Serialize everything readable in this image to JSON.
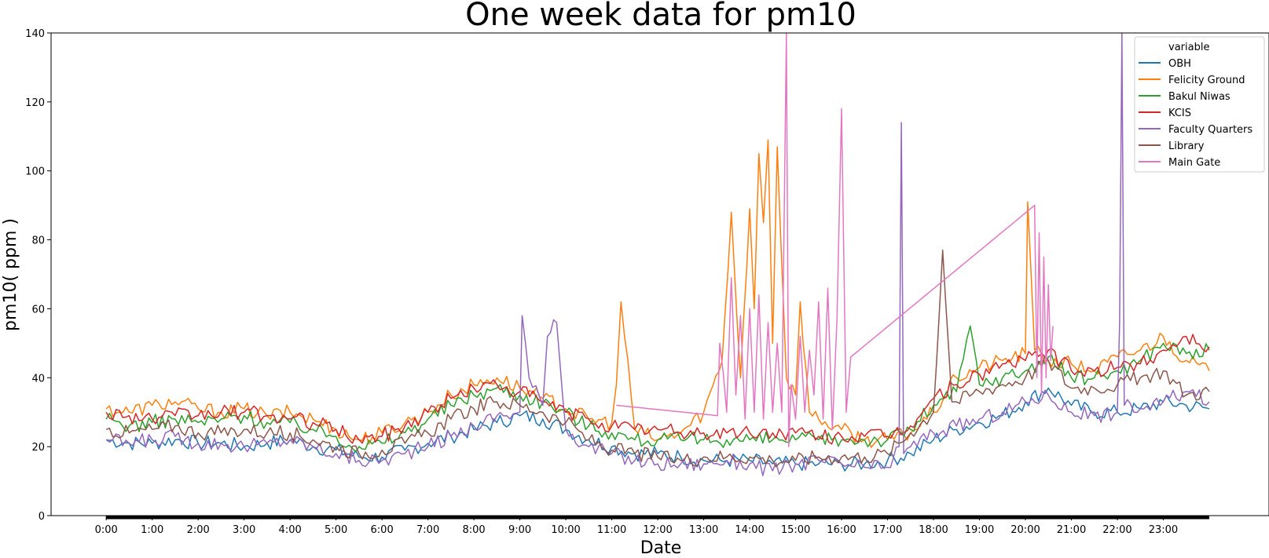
{
  "chart_data": {
    "type": "line",
    "title": "One week data for pm10",
    "xlabel": "Date",
    "ylabel": "pm10( ppm )",
    "ylim": [
      0,
      140
    ],
    "yticks": [
      0,
      20,
      40,
      60,
      80,
      100,
      120,
      140
    ],
    "xlim": [
      -1.2,
      25.3
    ],
    "xticks": [
      "0:00",
      "1:00",
      "2:00",
      "3:00",
      "4:00",
      "5:00",
      "6:00",
      "7:00",
      "8:00",
      "9:00",
      "10:00",
      "11:00",
      "12:00",
      "13:00",
      "14:00",
      "15:00",
      "16:00",
      "17:00",
      "18:00",
      "19:00",
      "20:00",
      "21:00",
      "22:00",
      "23:00"
    ],
    "grid": false,
    "legend": {
      "title": "variable",
      "position": "top-right"
    },
    "series": [
      {
        "name": "OBH",
        "color": "#1f77b4",
        "x": [
          0,
          0.5,
          1,
          1.5,
          2,
          2.5,
          3,
          3.5,
          4,
          4.5,
          5,
          5.5,
          6,
          6.5,
          7,
          7.5,
          8,
          8.5,
          9,
          9.5,
          10,
          10.5,
          11,
          11.5,
          12,
          12.5,
          13,
          13.5,
          14,
          14.5,
          15,
          15.5,
          16,
          16.5,
          17,
          17.5,
          18,
          18.5,
          19,
          19.5,
          20,
          20.5,
          21,
          21.5,
          22,
          22.5,
          23,
          23.5,
          24
        ],
        "y": [
          22,
          21,
          21,
          22,
          21,
          21,
          20,
          21,
          22,
          20,
          19,
          17,
          17,
          19,
          21,
          23,
          25,
          27,
          29,
          28,
          25,
          22,
          20,
          18,
          18,
          17,
          16,
          16,
          16,
          15,
          15,
          15,
          15,
          15,
          16,
          18,
          22,
          25,
          27,
          29,
          33,
          37,
          32,
          30,
          30,
          31,
          33,
          32,
          31
        ]
      },
      {
        "name": "Felicity Ground",
        "color": "#ff7f0e",
        "x": [
          0,
          0.5,
          1,
          1.5,
          2,
          2.5,
          3,
          3.5,
          4,
          4.5,
          5,
          5.5,
          6,
          6.5,
          7,
          7.5,
          8,
          8.5,
          9,
          9.5,
          10,
          10.5,
          11,
          11.1,
          11.2,
          11.5,
          12,
          12.5,
          13,
          13.4,
          13.6,
          13.8,
          14,
          14.1,
          14.2,
          14.3,
          14.4,
          14.5,
          14.6,
          14.8,
          15,
          15.1,
          15.3,
          15.5,
          16,
          16.5,
          17,
          17.5,
          18,
          18.5,
          19,
          19.5,
          20,
          20.05,
          20.2,
          20.5,
          21,
          21.5,
          22,
          22.5,
          23,
          23.5,
          24
        ],
        "y": [
          31,
          30,
          32,
          33,
          31,
          30,
          31,
          29,
          30,
          28,
          25,
          22,
          24,
          27,
          30,
          35,
          38,
          40,
          37,
          34,
          31,
          28,
          27,
          38,
          62,
          25,
          22,
          24,
          30,
          45,
          88,
          40,
          89,
          60,
          105,
          85,
          109,
          50,
          107,
          40,
          35,
          62,
          30,
          28,
          25,
          22,
          22,
          24,
          30,
          40,
          43,
          45,
          47,
          91,
          48,
          45,
          44,
          42,
          46,
          48,
          52,
          45,
          42
        ]
      },
      {
        "name": "Bakul Niwas",
        "color": "#2ca02c",
        "x": [
          0,
          0.5,
          1,
          1.5,
          2,
          2.5,
          3,
          3.5,
          4,
          4.5,
          5,
          5.5,
          6,
          6.5,
          7,
          7.5,
          8,
          8.5,
          9,
          9.5,
          10,
          10.5,
          11,
          11.5,
          12,
          12.5,
          13,
          13.5,
          14,
          14.5,
          15,
          15.5,
          16,
          16.5,
          17,
          17.5,
          18,
          18.5,
          18.8,
          19,
          19.5,
          20,
          20.5,
          21,
          21.5,
          22,
          22.5,
          23,
          23.5,
          24
        ],
        "y": [
          28,
          26,
          27,
          28,
          27,
          28,
          29,
          27,
          27,
          25,
          23,
          20,
          21,
          24,
          28,
          32,
          35,
          37,
          35,
          33,
          30,
          26,
          24,
          22,
          22,
          22,
          22,
          22,
          22,
          22,
          22,
          22,
          22,
          22,
          22,
          25,
          32,
          36,
          55,
          38,
          40,
          42,
          46,
          40,
          40,
          42,
          45,
          50,
          47,
          48
        ]
      },
      {
        "name": "KCIS",
        "color": "#d62728",
        "x": [
          0,
          0.5,
          1,
          1.5,
          2,
          2.5,
          3,
          3.5,
          4,
          4.5,
          5,
          5.5,
          6,
          6.5,
          7,
          7.5,
          8,
          8.5,
          9,
          9.5,
          10,
          10.5,
          11,
          11.5,
          12,
          12.5,
          13,
          13.5,
          14,
          14.5,
          15,
          15.5,
          16,
          16.5,
          17,
          17.5,
          18,
          18.5,
          19,
          19.5,
          20,
          20.5,
          21,
          21.5,
          22,
          22.5,
          23,
          23.5,
          24
        ],
        "y": [
          30,
          29,
          28,
          29,
          29,
          30,
          30,
          29,
          28,
          27,
          25,
          22,
          23,
          26,
          30,
          34,
          37,
          38,
          36,
          33,
          30,
          28,
          26,
          25,
          25,
          24,
          24,
          24,
          24,
          24,
          24,
          23,
          23,
          23,
          23,
          26,
          34,
          38,
          41,
          44,
          45,
          48,
          42,
          42,
          43,
          44,
          48,
          52,
          49
        ]
      },
      {
        "name": "Faculty Quarters",
        "color": "#9467bd",
        "x": [
          0,
          0.5,
          1,
          1.5,
          2,
          2.5,
          3,
          3.5,
          4,
          4.5,
          5,
          5.5,
          6,
          6.5,
          7,
          7.5,
          8,
          8.5,
          9,
          9.05,
          9.2,
          9.5,
          9.6,
          9.8,
          10,
          10.5,
          11,
          11.5,
          12,
          12.5,
          13,
          13.5,
          14,
          14.5,
          15,
          15.5,
          16,
          16.5,
          17,
          17.25,
          17.3,
          17.35,
          17.5,
          18,
          18.5,
          19,
          19.5,
          20,
          20.5,
          21,
          21.5,
          22,
          22.05,
          22.1,
          22.15,
          22.5,
          23,
          23.5,
          24
        ],
        "y": [
          22,
          21,
          22,
          23,
          21,
          21,
          20,
          21,
          22,
          20,
          18,
          16,
          16,
          18,
          20,
          23,
          26,
          29,
          30,
          58,
          40,
          32,
          52,
          56,
          25,
          20,
          18,
          16,
          15,
          15,
          15,
          16,
          15,
          13,
          15,
          16,
          15,
          14,
          14,
          20,
          114,
          18,
          20,
          24,
          26,
          28,
          30,
          33,
          35,
          30,
          29,
          30,
          56,
          140,
          32,
          31,
          33,
          36,
          33
        ]
      },
      {
        "name": "Library",
        "color": "#8c564b",
        "x": [
          0,
          0.5,
          1,
          1.5,
          2,
          2.5,
          3,
          3.5,
          4,
          4.5,
          5,
          5.5,
          6,
          6.5,
          7,
          7.5,
          8,
          8.5,
          9,
          9.5,
          10,
          10.5,
          11,
          11.5,
          12,
          12.5,
          13,
          13.5,
          14,
          14.5,
          15,
          15.5,
          16,
          16.5,
          17,
          17.5,
          18,
          18.2,
          18.4,
          18.5,
          19,
          19.5,
          20,
          20.5,
          21,
          21.5,
          22,
          22.5,
          23,
          23.5,
          24
        ],
        "y": [
          25,
          24,
          25,
          26,
          24,
          24,
          25,
          24,
          24,
          22,
          20,
          18,
          19,
          21,
          24,
          28,
          31,
          33,
          32,
          30,
          27,
          22,
          19,
          18,
          17,
          16,
          17,
          17,
          17,
          16,
          16,
          17,
          17,
          17,
          18,
          24,
          30,
          77,
          33,
          33,
          36,
          38,
          40,
          45,
          37,
          37,
          38,
          40,
          42,
          35,
          36
        ]
      },
      {
        "name": "Main Gate",
        "color": "#e377c2",
        "x": [
          11.1,
          13.3,
          13.35,
          13.5,
          13.6,
          13.7,
          13.8,
          13.9,
          14,
          14.1,
          14.2,
          14.3,
          14.4,
          14.5,
          14.6,
          14.7,
          14.8,
          14.85,
          14.9,
          15,
          15.1,
          15.2,
          15.3,
          15.4,
          15.5,
          15.6,
          15.7,
          15.8,
          15.9,
          16,
          16.1,
          16.2,
          20.2,
          20.25,
          20.3,
          20.35,
          20.4,
          20.45,
          20.5,
          20.55,
          20.6
        ],
        "y": [
          32,
          29,
          50,
          30,
          69,
          35,
          58,
          28,
          60,
          30,
          64,
          28,
          56,
          30,
          50,
          30,
          140,
          20,
          38,
          28,
          52,
          30,
          48,
          35,
          62,
          28,
          66,
          25,
          57,
          118,
          30,
          46,
          90,
          40,
          82,
          35,
          75,
          40,
          67,
          45,
          55
        ]
      }
    ]
  }
}
